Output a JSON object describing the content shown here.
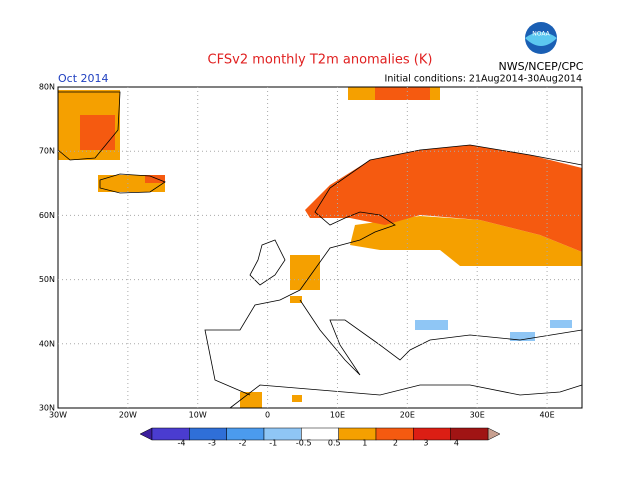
{
  "map": {
    "title": "CFSv2 monthly T2m anomalies (K)",
    "period": "Oct 2014",
    "source": "NWS/NCEP/CPC",
    "logo_text": "NOAA",
    "initial_conditions": "Initial conditions: 21Aug2014-30Aug2014",
    "lat_labels": [
      "80N",
      "70N",
      "60N",
      "50N",
      "40N",
      "30N"
    ],
    "lon_labels": [
      "30W",
      "20W",
      "10W",
      "0",
      "10E",
      "20E",
      "30E",
      "40E"
    ],
    "legend": {
      "labels": [
        "-4",
        "-3",
        "-2",
        "-1",
        "-0.5",
        "0.5",
        "1",
        "2",
        "3",
        "4"
      ],
      "colors": [
        "#3c1e9c",
        "#4a3cd0",
        "#2f6fd8",
        "#4b9bee",
        "#8fc6f5",
        "#ffffff",
        "#f5a000",
        "#f55a10",
        "#dc1e14",
        "#a01414",
        "#c8a090"
      ]
    }
  }
}
